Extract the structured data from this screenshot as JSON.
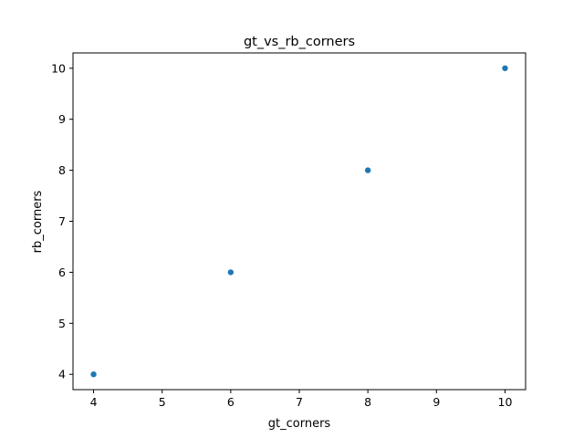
{
  "chart_data": {
    "type": "scatter",
    "title": "gt_vs_rb_corners",
    "xlabel": "gt_corners",
    "ylabel": "rb_corners",
    "xlim": [
      3.7,
      10.3
    ],
    "ylim": [
      3.7,
      10.3
    ],
    "x_ticks": [
      4,
      5,
      6,
      7,
      8,
      9,
      10
    ],
    "y_ticks": [
      4,
      5,
      6,
      7,
      8,
      9,
      10
    ],
    "grid": false,
    "points": [
      {
        "x": 4,
        "y": 4
      },
      {
        "x": 6,
        "y": 6
      },
      {
        "x": 8,
        "y": 8
      },
      {
        "x": 10,
        "y": 10
      }
    ],
    "marker_color": "#1f77b4"
  }
}
